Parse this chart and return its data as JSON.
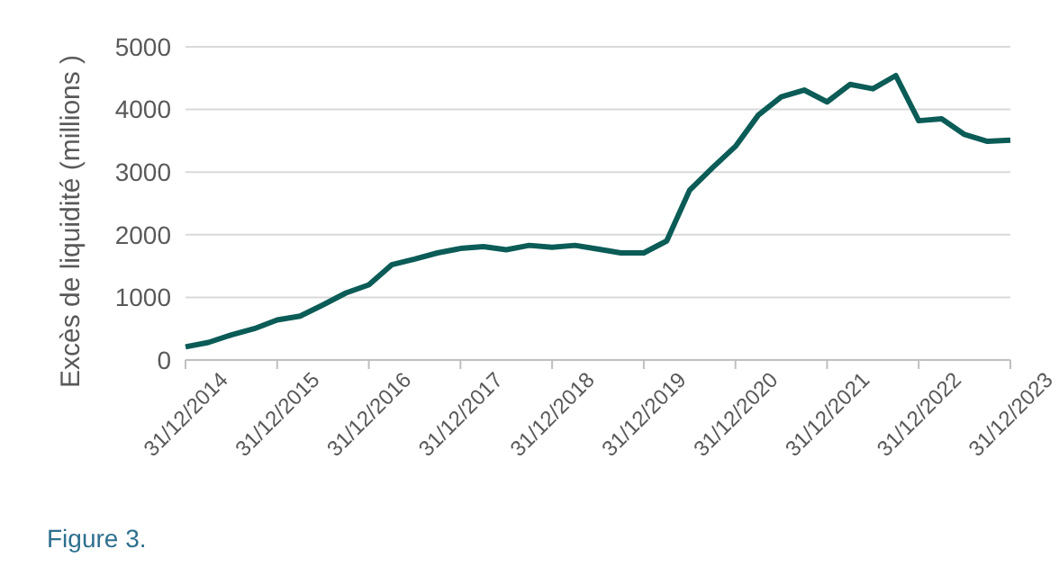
{
  "chart_data": {
    "type": "line",
    "ylabel": "Excès de liquidité (millions )",
    "categories": [
      "31/12/2014",
      null,
      null,
      null,
      "31/12/2015",
      null,
      null,
      null,
      "31/12/2016",
      null,
      null,
      null,
      "31/12/2017",
      null,
      null,
      null,
      "31/12/2018",
      null,
      null,
      null,
      "31/12/2019",
      null,
      null,
      null,
      "31/12/2020",
      null,
      null,
      null,
      "31/12/2021",
      null,
      null,
      null,
      "31/12/2022",
      null,
      null,
      null,
      "31/12/2023"
    ],
    "series": [
      {
        "color": "#0b5c57",
        "values": [
          210,
          280,
          400,
          500,
          640,
          700,
          880,
          1070,
          1200,
          1520,
          1610,
          1710,
          1780,
          1810,
          1760,
          1830,
          1800,
          1830,
          1770,
          1710,
          1710,
          1900,
          2710,
          3070,
          3410,
          3910,
          4200,
          4310,
          4120,
          4400,
          4330,
          4540,
          3820,
          3850,
          3600,
          3490,
          3510
        ]
      }
    ],
    "ylim": [
      0,
      5000
    ],
    "yticks": [
      0,
      1000,
      2000,
      3000,
      4000,
      5000
    ],
    "grid": "y",
    "marker": "none",
    "line_style": "solid",
    "annotations": [
      "Figure 3."
    ]
  }
}
